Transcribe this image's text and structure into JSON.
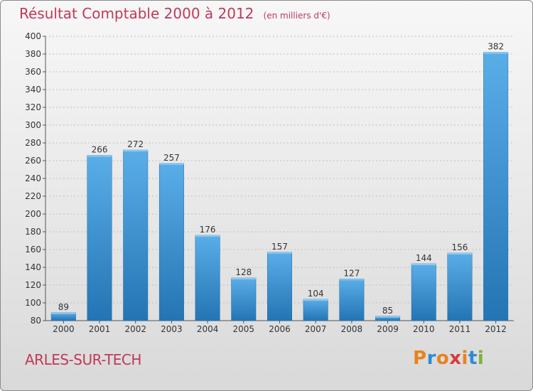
{
  "header": {
    "title": "Résultat Comptable 2000 à 2012",
    "subtitle": "(en milliers d'€)"
  },
  "footer": {
    "location": "ARLES-SUR-TECH",
    "logo_text": "Proxiti"
  },
  "colors": {
    "bar_top": "#5aaee8",
    "bar_bottom": "#2474b3",
    "title": "#c0395a",
    "logo_letters": [
      "#e8831c",
      "#2d8bd6",
      "#e8831c",
      "#d93a3a",
      "#e8831c",
      "#2d8bd6",
      "#7cb33a"
    ]
  },
  "chart_data": {
    "type": "bar",
    "categories": [
      "2000",
      "2001",
      "2002",
      "2003",
      "2004",
      "2005",
      "2006",
      "2007",
      "2008",
      "2009",
      "2010",
      "2011",
      "2012"
    ],
    "values": [
      89,
      266,
      272,
      257,
      176,
      128,
      157,
      104,
      127,
      85,
      144,
      156,
      382
    ],
    "data_labels": [
      "89",
      "266",
      "272",
      "257",
      "176",
      "128",
      "157",
      "104",
      "127",
      "85",
      "144",
      "156",
      "382"
    ],
    "ylim": [
      80,
      400
    ],
    "yticks": [
      80,
      100,
      120,
      140,
      160,
      180,
      200,
      220,
      240,
      260,
      280,
      300,
      320,
      340,
      360,
      380,
      400
    ],
    "grid": true,
    "legend": "none"
  }
}
